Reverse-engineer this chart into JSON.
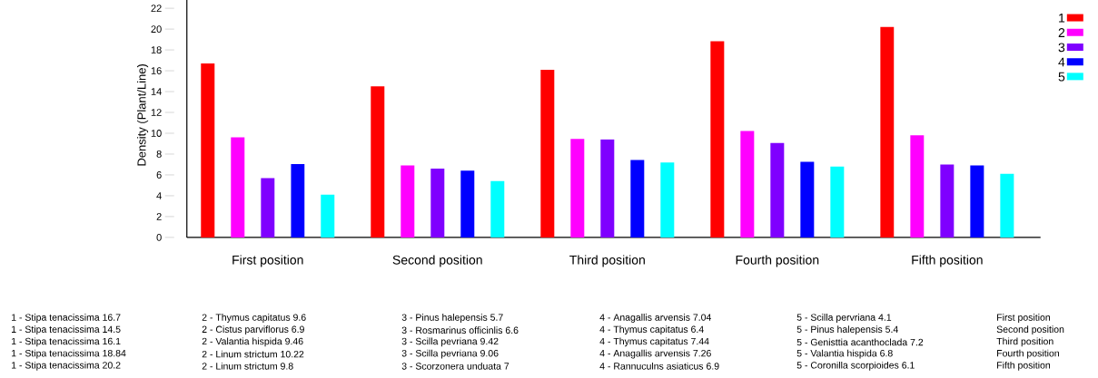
{
  "chart_data": {
    "type": "bar",
    "ylabel": "Density (Plant/Line)",
    "categories": [
      "First position",
      "Second position",
      "Third position",
      "Fourth position",
      "Fifth position"
    ],
    "series": [
      {
        "name": "1",
        "color": "#ff0000",
        "values": [
          16.7,
          14.5,
          16.1,
          18.84,
          20.2
        ]
      },
      {
        "name": "2",
        "color": "#ff00ff",
        "values": [
          9.6,
          6.9,
          9.46,
          10.22,
          9.8
        ]
      },
      {
        "name": "3",
        "color": "#7f00ff",
        "values": [
          5.7,
          6.6,
          9.42,
          9.06,
          7
        ]
      },
      {
        "name": "4",
        "color": "#0000ff",
        "values": [
          7.04,
          6.4,
          7.44,
          7.26,
          6.9
        ]
      },
      {
        "name": "5",
        "color": "#00ffff",
        "values": [
          4.1,
          5.4,
          7.2,
          6.8,
          6.1
        ]
      }
    ],
    "ylim": [
      0,
      23.5
    ],
    "yticks": [
      0,
      2,
      4,
      6,
      8,
      10,
      12,
      14,
      16,
      18,
      20,
      22
    ],
    "grid": false,
    "legend": "right",
    "annotations": [
      "1 - Stipa tenacissima 16.7",
      "2 - Thymus capitatus 9.6",
      "3 - Pinus halepensis 5.7",
      "4 - Anagallis arvensis 7.04",
      "5 - Scilla pervriana 4.1",
      "First position",
      "1 - Stipa tenacissima 14.5",
      "2 - Cistus parviflorus 6.9",
      "3 - Rosmarinus officinlis 6.6",
      "4 - Thymus capitatus 6.4",
      "5 - Pinus halepensis 5.4",
      "Second position",
      "1 - Stipa tenacissima 16.1",
      "2 - Valantia hispida 9.46",
      "3 - Scilla pevriana 9.42",
      "4 - Thymus capitatus 7.44",
      "5 - Genisttia acanthoclada 7.2",
      "Third position",
      "1 - Stipa tenacissima 18.84",
      "2 - Linum strictum 10.22",
      "3 - Scilla pevriana 9.06",
      "4 - Anagallis arvensis 7.26",
      "5 - Valantia hispida 6.8",
      "Fourth position",
      "1 - Stipa tenacissima 20.2",
      "2 - Linum strictum 9.8",
      "3 - Scorzonera unduata 7",
      "4 - Rannuculns asiaticus 6.9",
      "5 - Coronilla scorpioides 6.1",
      "Fifth position"
    ]
  }
}
